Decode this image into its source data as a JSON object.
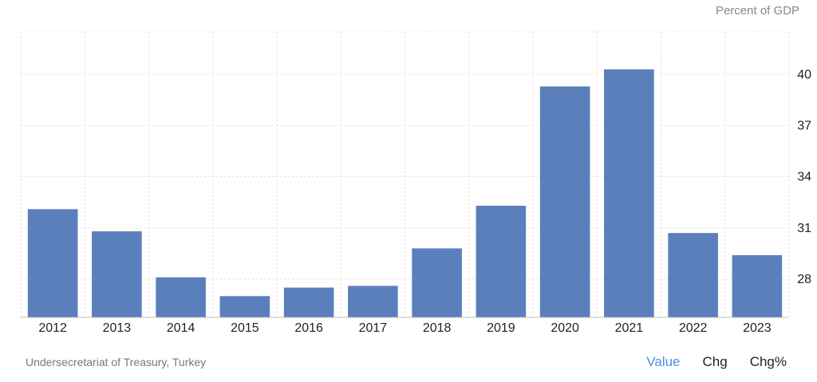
{
  "header": {
    "unit_label": "Percent of GDP"
  },
  "footer": {
    "source": "Undersecretariat of Treasury, Turkey",
    "tabs": [
      {
        "label": "Value",
        "active": true
      },
      {
        "label": "Chg",
        "active": false
      },
      {
        "label": "Chg%",
        "active": false
      }
    ]
  },
  "colors": {
    "bar": "#5b7fbb",
    "grid": "#dddddd",
    "axis": "#bbbbbb",
    "active_tab": "#4a90d9"
  },
  "chart_data": {
    "type": "bar",
    "title": "",
    "xlabel": "",
    "ylabel": "Percent of GDP",
    "categories": [
      "2012",
      "2013",
      "2014",
      "2015",
      "2016",
      "2017",
      "2018",
      "2019",
      "2020",
      "2021",
      "2022",
      "2023"
    ],
    "values": [
      32.1,
      30.8,
      28.1,
      27.0,
      27.5,
      27.6,
      29.8,
      32.3,
      39.3,
      40.3,
      30.7,
      29.4
    ],
    "yticks": [
      28,
      31,
      34,
      37,
      40
    ],
    "ylim": [
      25.75,
      42.5
    ],
    "grid": true,
    "legend": "none"
  }
}
